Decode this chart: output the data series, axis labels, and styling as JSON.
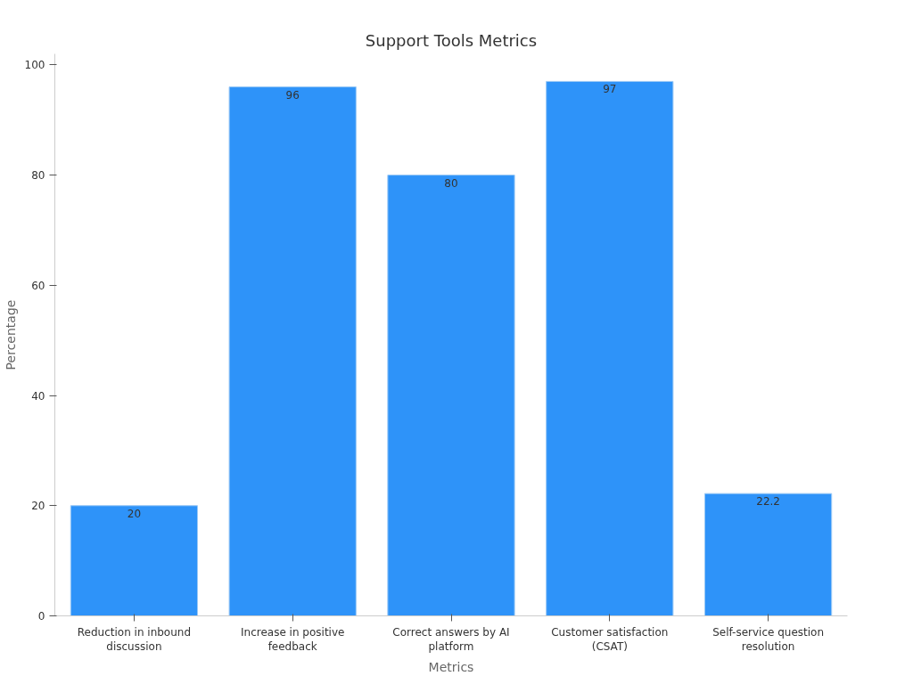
{
  "chart_data": {
    "type": "bar",
    "title": "Support Tools Metrics",
    "xlabel": "Metrics",
    "ylabel": "Percentage",
    "categories": [
      "Reduction in inbound discussion",
      "Increase in positive feedback",
      "Correct answers by AI platform",
      "Customer satisfaction (CSAT)",
      "Self-service question resolution"
    ],
    "values": [
      20,
      96,
      80,
      97,
      22.2
    ],
    "color": "#2e93f9",
    "ylim": [
      0,
      102
    ],
    "yticks": [
      0,
      20,
      40,
      60,
      80,
      100
    ],
    "grid": false,
    "data_labels": true
  }
}
